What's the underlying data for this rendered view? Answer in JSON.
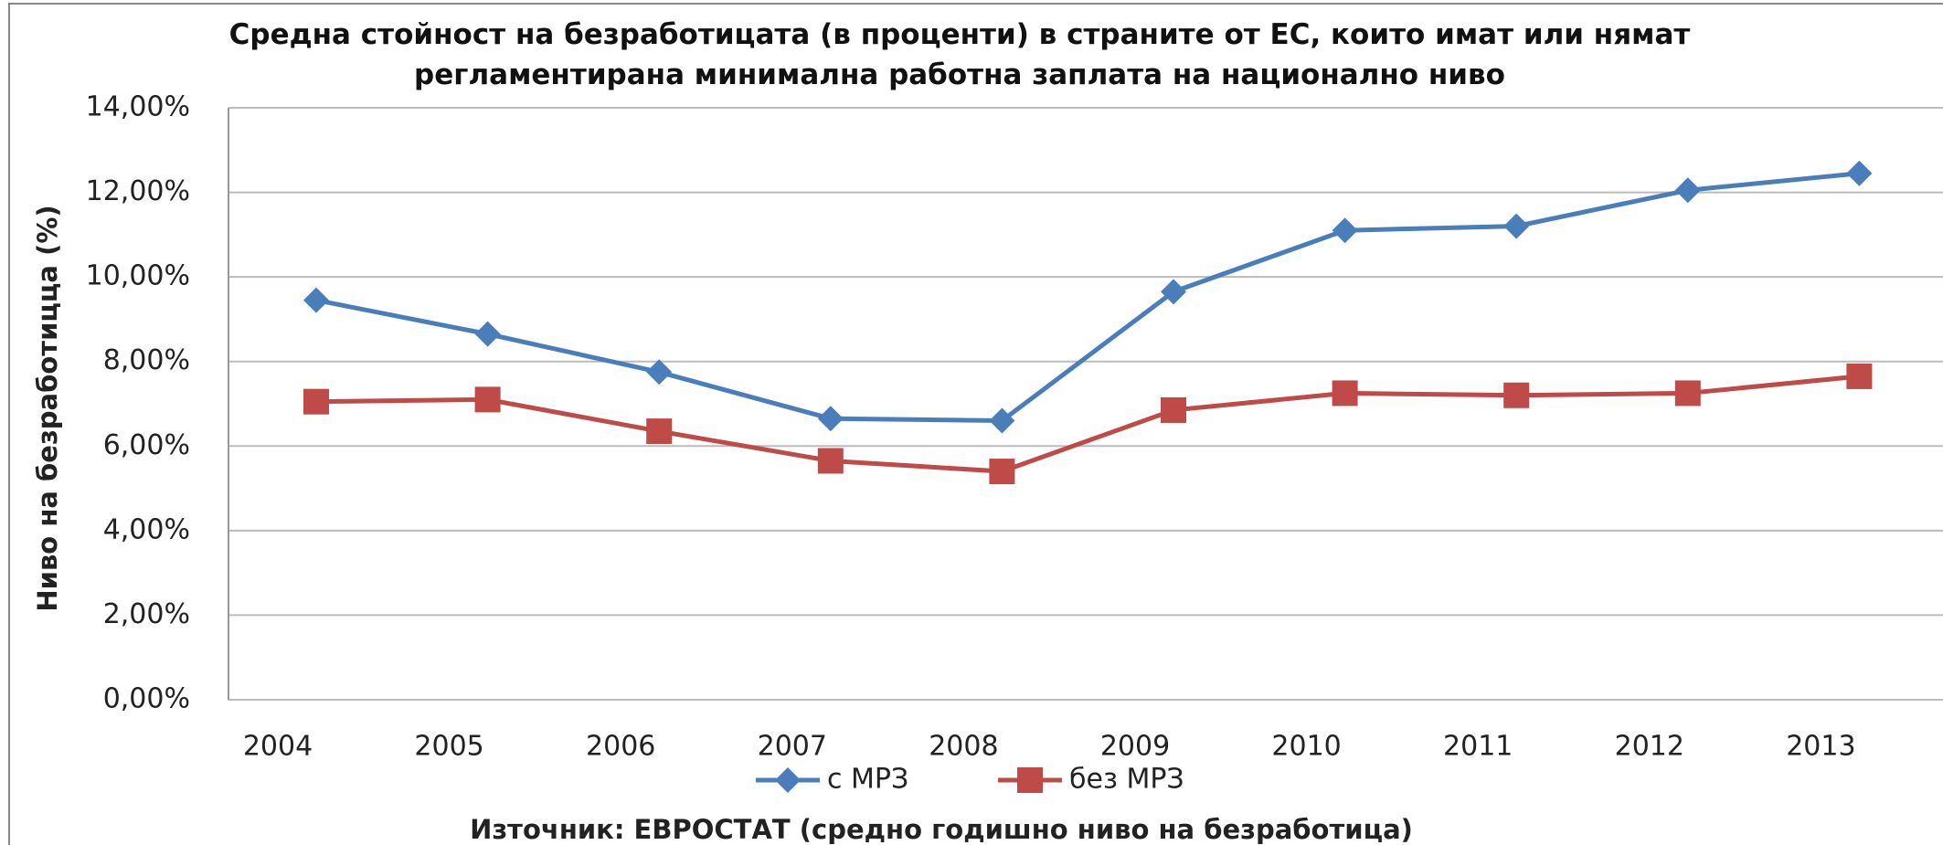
{
  "chart_data": {
    "type": "line",
    "title": "Средна стойност на безработицата (в проценти) в страните от ЕС, които имат или нямат регламентирана минимална работна заплата на национално ниво",
    "ylabel": "Ниво на безработицца (%)",
    "source": "Източник: ЕВРОСТАТ (средно годишно ниво на безработица)",
    "categories": [
      "2004",
      "2005",
      "2006",
      "2007",
      "2008",
      "2009",
      "2010",
      "2011",
      "2012",
      "2013"
    ],
    "series": [
      {
        "name": "с МРЗ",
        "color": "#4a7ebb",
        "marker": "diamond",
        "values": [
          9.45,
          8.65,
          7.75,
          6.65,
          6.6,
          9.65,
          11.1,
          11.2,
          12.05,
          12.45
        ]
      },
      {
        "name": "без МРЗ",
        "color": "#be4b48",
        "marker": "square",
        "values": [
          7.05,
          7.1,
          6.35,
          5.65,
          5.4,
          6.85,
          7.25,
          7.2,
          7.25,
          7.65
        ]
      }
    ],
    "ylim": [
      0,
      14
    ],
    "yticks": [
      {
        "value": 0,
        "label": "0,00%"
      },
      {
        "value": 2,
        "label": "2,00%"
      },
      {
        "value": 4,
        "label": "4,00%"
      },
      {
        "value": 6,
        "label": "6,00%"
      },
      {
        "value": 8,
        "label": "8,00%"
      },
      {
        "value": 10,
        "label": "10,00%"
      },
      {
        "value": 12,
        "label": "12,00%"
      },
      {
        "value": 14,
        "label": "14,00%"
      }
    ],
    "grid": true,
    "legend": "bottom"
  }
}
